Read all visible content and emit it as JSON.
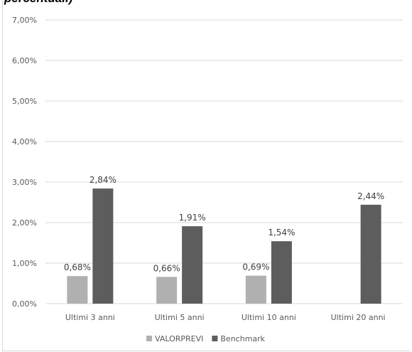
{
  "header_text": "percentuali)",
  "chart_data": {
    "type": "bar",
    "categories": [
      "Ultimi 3 anni",
      "Ultimi 5 anni",
      "Ultimi 10 anni",
      "Ultimi 20 anni"
    ],
    "series": [
      {
        "name": "VALORPREVI",
        "color": "#b0b0b0",
        "values": [
          0.68,
          0.66,
          0.69,
          null
        ],
        "labels": [
          "0,68%",
          "0,66%",
          "0,69%",
          ""
        ]
      },
      {
        "name": "Benchmark",
        "color": "#5d5d5d",
        "values": [
          2.84,
          1.91,
          1.54,
          2.44
        ],
        "labels": [
          "2,84%",
          "1,91%",
          "1,54%",
          "2,44%"
        ]
      }
    ],
    "ylim": [
      0,
      7
    ],
    "yticks": [
      "0,00%",
      "1,00%",
      "2,00%",
      "3,00%",
      "4,00%",
      "5,00%",
      "6,00%",
      "7,00%"
    ],
    "grid": true,
    "legend_position": "bottom",
    "gridline_color": "#d9d9d9"
  }
}
